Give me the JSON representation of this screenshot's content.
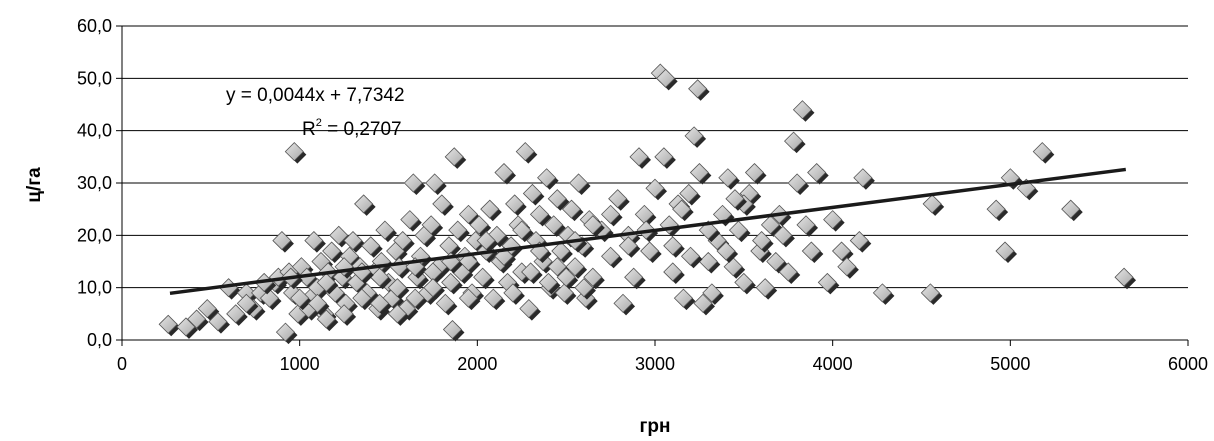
{
  "chart_data": {
    "type": "scatter",
    "xlabel": "грн",
    "ylabel": "ц/га",
    "xlim": [
      0,
      6000
    ],
    "ylim": [
      0,
      60
    ],
    "x_ticks": [
      "0",
      "1000",
      "2000",
      "3000",
      "4000",
      "5000",
      "6000"
    ],
    "y_ticks": [
      "0,0",
      "10,0",
      "20,0",
      "30,0",
      "40,0",
      "50,0",
      "60,0"
    ],
    "grid": "horizontal",
    "legend": "none",
    "marker": "diamond",
    "colors": {
      "marker_fill": "#c8c8c8",
      "marker_shadow": "#2a2a2a",
      "trend_line": "#1a1a1a"
    },
    "trendline": {
      "equation": "y = 0,0044x + 7,7342",
      "r2_prefix": "R",
      "r2_sup": "2",
      "r2_value": " = 0,2707",
      "slope": 0.0044,
      "intercept": 7.7342,
      "x_range": [
        270,
        5650
      ]
    },
    "points": [
      [
        260,
        3
      ],
      [
        360,
        2.5
      ],
      [
        420,
        4
      ],
      [
        480,
        6
      ],
      [
        540,
        3.5
      ],
      [
        600,
        10
      ],
      [
        640,
        5
      ],
      [
        700,
        9
      ],
      [
        740,
        6
      ],
      [
        780,
        9
      ],
      [
        830,
        8
      ],
      [
        860,
        11
      ],
      [
        880,
        12
      ],
      [
        900,
        19
      ],
      [
        920,
        1.5
      ],
      [
        940,
        13
      ],
      [
        960,
        9
      ],
      [
        970,
        36
      ],
      [
        990,
        5
      ],
      [
        1010,
        14
      ],
      [
        1040,
        12
      ],
      [
        1060,
        8
      ],
      [
        1080,
        19
      ],
      [
        1100,
        10
      ],
      [
        1120,
        15
      ],
      [
        1140,
        5
      ],
      [
        1160,
        13
      ],
      [
        1180,
        17
      ],
      [
        1200,
        9
      ],
      [
        1220,
        20
      ],
      [
        1240,
        12
      ],
      [
        1260,
        7
      ],
      [
        1280,
        16
      ],
      [
        1300,
        19
      ],
      [
        1320,
        11
      ],
      [
        1340,
        14
      ],
      [
        1360,
        26
      ],
      [
        1380,
        9
      ],
      [
        1400,
        18
      ],
      [
        1420,
        13
      ],
      [
        1440,
        6
      ],
      [
        1460,
        15
      ],
      [
        1480,
        21
      ],
      [
        1500,
        11
      ],
      [
        1520,
        8
      ],
      [
        1540,
        17
      ],
      [
        1560,
        14
      ],
      [
        1580,
        19
      ],
      [
        1600,
        6
      ],
      [
        1620,
        23
      ],
      [
        1640,
        30
      ],
      [
        1660,
        12
      ],
      [
        1680,
        16
      ],
      [
        1700,
        20
      ],
      [
        1720,
        9
      ],
      [
        1740,
        22
      ],
      [
        1760,
        30
      ],
      [
        1780,
        14
      ],
      [
        1800,
        26
      ],
      [
        1820,
        7
      ],
      [
        1840,
        18
      ],
      [
        1860,
        2
      ],
      [
        1870,
        35
      ],
      [
        1890,
        21
      ],
      [
        1910,
        13
      ],
      [
        1930,
        16
      ],
      [
        1950,
        24
      ],
      [
        1970,
        9
      ],
      [
        1990,
        19
      ],
      [
        2010,
        22
      ],
      [
        2030,
        12
      ],
      [
        2050,
        17
      ],
      [
        2070,
        25
      ],
      [
        2090,
        8
      ],
      [
        2110,
        20
      ],
      [
        2130,
        15
      ],
      [
        2150,
        32
      ],
      [
        2170,
        11
      ],
      [
        2190,
        18
      ],
      [
        2210,
        26
      ],
      [
        2230,
        22
      ],
      [
        2250,
        13
      ],
      [
        2270,
        36
      ],
      [
        2290,
        6
      ],
      [
        2310,
        28
      ],
      [
        2330,
        19
      ],
      [
        2350,
        24
      ],
      [
        2370,
        15
      ],
      [
        2390,
        31
      ],
      [
        2410,
        10
      ],
      [
        2430,
        22
      ],
      [
        2450,
        27
      ],
      [
        2470,
        17
      ],
      [
        2490,
        9
      ],
      [
        2510,
        20
      ],
      [
        2530,
        25
      ],
      [
        2550,
        14
      ],
      [
        2570,
        30
      ],
      [
        2590,
        18
      ],
      [
        2610,
        8
      ],
      [
        2630,
        23
      ],
      [
        2650,
        12
      ],
      [
        2700,
        21
      ],
      [
        2750,
        16
      ],
      [
        2790,
        27
      ],
      [
        2820,
        7
      ],
      [
        2850,
        20
      ],
      [
        2880,
        12
      ],
      [
        2910,
        35
      ],
      [
        2940,
        24
      ],
      [
        2970,
        17
      ],
      [
        3000,
        29
      ],
      [
        3030,
        51
      ],
      [
        3050,
        35
      ],
      [
        3060,
        50
      ],
      [
        3080,
        22
      ],
      [
        3100,
        13
      ],
      [
        3130,
        26
      ],
      [
        3160,
        8
      ],
      [
        3190,
        28
      ],
      [
        3220,
        39
      ],
      [
        3240,
        48
      ],
      [
        3270,
        7
      ],
      [
        3300,
        15
      ],
      [
        3320,
        9
      ],
      [
        3350,
        19
      ],
      [
        3380,
        24
      ],
      [
        3410,
        31
      ],
      [
        3440,
        14
      ],
      [
        3470,
        21
      ],
      [
        3500,
        11
      ],
      [
        3530,
        28
      ],
      [
        3560,
        32
      ],
      [
        3590,
        17
      ],
      [
        3620,
        10
      ],
      [
        3650,
        22
      ],
      [
        3680,
        15
      ],
      [
        3720,
        20
      ],
      [
        3750,
        13
      ],
      [
        3780,
        38
      ],
      [
        3800,
        30
      ],
      [
        3830,
        44
      ],
      [
        3850,
        22
      ],
      [
        3880,
        17
      ],
      [
        3910,
        32
      ],
      [
        3970,
        11
      ],
      [
        4000,
        23
      ],
      [
        4050,
        17
      ],
      [
        4080,
        14
      ],
      [
        4150,
        19
      ],
      [
        4170,
        31
      ],
      [
        4280,
        9
      ],
      [
        4550,
        9
      ],
      [
        4560,
        26
      ],
      [
        4920,
        25
      ],
      [
        4970,
        17
      ],
      [
        5000,
        31
      ],
      [
        5090,
        29
      ],
      [
        5180,
        36
      ],
      [
        5340,
        25
      ],
      [
        5640,
        12
      ],
      [
        1150,
        11
      ],
      [
        1250,
        14
      ],
      [
        1350,
        8
      ],
      [
        1450,
        12
      ],
      [
        1550,
        10
      ],
      [
        1650,
        14
      ],
      [
        1750,
        13
      ],
      [
        1850,
        11
      ],
      [
        1950,
        15
      ],
      [
        2050,
        19
      ],
      [
        2150,
        16
      ],
      [
        2250,
        21
      ],
      [
        2350,
        17
      ],
      [
        2450,
        14
      ],
      [
        2550,
        19
      ],
      [
        2650,
        22
      ],
      [
        2750,
        24
      ],
      [
        2850,
        18
      ],
      [
        2950,
        21
      ],
      [
        1050,
        6
      ],
      [
        1150,
        4
      ],
      [
        1250,
        5
      ],
      [
        1350,
        13
      ],
      [
        1450,
        7
      ],
      [
        1550,
        5
      ],
      [
        1650,
        8
      ],
      [
        1750,
        10
      ],
      [
        1850,
        15
      ],
      [
        1950,
        8
      ],
      [
        700,
        7
      ],
      [
        800,
        11
      ],
      [
        950,
        12
      ],
      [
        1000,
        8
      ],
      [
        1100,
        7
      ],
      [
        2200,
        9
      ],
      [
        2300,
        13
      ],
      [
        2400,
        11
      ],
      [
        2500,
        12
      ],
      [
        2600,
        10
      ],
      [
        3100,
        18
      ],
      [
        3200,
        16
      ],
      [
        3300,
        21
      ],
      [
        3400,
        17
      ],
      [
        3500,
        26
      ],
      [
        3600,
        19
      ],
      [
        3700,
        24
      ],
      [
        3150,
        25
      ],
      [
        3250,
        32
      ],
      [
        3450,
        27
      ]
    ]
  }
}
